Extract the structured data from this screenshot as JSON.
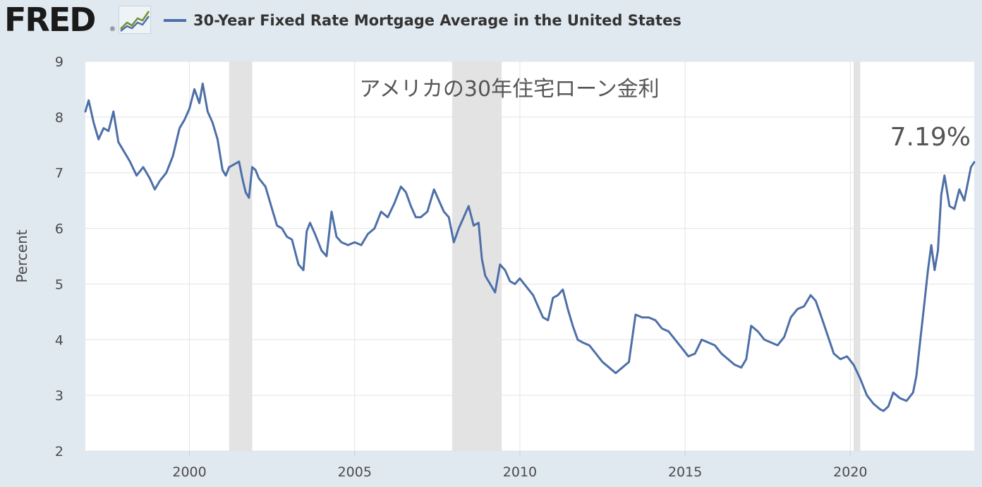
{
  "header": {
    "logo": "FRED",
    "logo_mark": "®",
    "logo_icon": "line-chart-icon",
    "legend_label": "30-Year Fixed Rate Mortgage Average in the United States"
  },
  "colors": {
    "background": "#e1e9f0",
    "plot": "#ffffff",
    "series": "#4d6fa8",
    "recession": "#e3e3e3",
    "grid": "#e3e3e3"
  },
  "chart_data": {
    "type": "line",
    "title": "",
    "annotation": "アメリカの30年住宅ローン金利",
    "callout": "7.19%",
    "xlabel": "",
    "ylabel": "Percent",
    "xlim": [
      1996.85,
      2023.75
    ],
    "ylim": [
      2,
      9
    ],
    "yticks": [
      2,
      3,
      4,
      5,
      6,
      7,
      8,
      9
    ],
    "xticks": [
      2000,
      2005,
      2010,
      2015,
      2020
    ],
    "grid": true,
    "recessions": [
      [
        2001.2,
        2001.9
      ],
      [
        2007.95,
        2009.45
      ],
      [
        2020.1,
        2020.3
      ]
    ],
    "series": [
      {
        "name": "30-Year Fixed Rate Mortgage Average in the United States",
        "x": [
          1996.85,
          1996.95,
          1997.1,
          1997.25,
          1997.4,
          1997.55,
          1997.7,
          1997.85,
          1998.0,
          1998.2,
          1998.4,
          1998.6,
          1998.8,
          1998.95,
          1999.1,
          1999.3,
          1999.5,
          1999.7,
          1999.85,
          2000.0,
          2000.15,
          2000.3,
          2000.4,
          2000.55,
          2000.7,
          2000.85,
          2001.0,
          2001.1,
          2001.2,
          2001.35,
          2001.5,
          2001.6,
          2001.7,
          2001.8,
          2001.9,
          2002.0,
          2002.1,
          2002.3,
          2002.5,
          2002.65,
          2002.8,
          2002.95,
          2003.1,
          2003.3,
          2003.45,
          2003.55,
          2003.65,
          2003.8,
          2004.0,
          2004.15,
          2004.3,
          2004.45,
          2004.6,
          2004.8,
          2005.0,
          2005.2,
          2005.4,
          2005.6,
          2005.8,
          2006.0,
          2006.2,
          2006.4,
          2006.55,
          2006.7,
          2006.85,
          2007.0,
          2007.2,
          2007.4,
          2007.55,
          2007.7,
          2007.85,
          2008.0,
          2008.15,
          2008.3,
          2008.45,
          2008.6,
          2008.75,
          2008.85,
          2008.95,
          2009.1,
          2009.25,
          2009.4,
          2009.55,
          2009.7,
          2009.85,
          2010.0,
          2010.2,
          2010.4,
          2010.55,
          2010.7,
          2010.85,
          2011.0,
          2011.15,
          2011.3,
          2011.45,
          2011.6,
          2011.75,
          2011.9,
          2012.1,
          2012.3,
          2012.5,
          2012.7,
          2012.9,
          2013.1,
          2013.3,
          2013.5,
          2013.7,
          2013.9,
          2014.1,
          2014.3,
          2014.5,
          2014.7,
          2014.9,
          2015.1,
          2015.3,
          2015.5,
          2015.7,
          2015.9,
          2016.1,
          2016.3,
          2016.5,
          2016.7,
          2016.85,
          2017.0,
          2017.2,
          2017.4,
          2017.6,
          2017.8,
          2018.0,
          2018.2,
          2018.4,
          2018.6,
          2018.8,
          2018.95,
          2019.1,
          2019.3,
          2019.5,
          2019.7,
          2019.9,
          2020.1,
          2020.3,
          2020.5,
          2020.7,
          2020.9,
          2021.0,
          2021.15,
          2021.3,
          2021.5,
          2021.7,
          2021.9,
          2022.0,
          2022.1,
          2022.25,
          2022.35,
          2022.45,
          2022.55,
          2022.65,
          2022.75,
          2022.85,
          2023.0,
          2023.15,
          2023.3,
          2023.45,
          2023.55,
          2023.65,
          2023.75
        ],
        "values": [
          8.1,
          8.3,
          7.9,
          7.6,
          7.8,
          7.75,
          8.1,
          7.55,
          7.4,
          7.2,
          6.95,
          7.1,
          6.9,
          6.7,
          6.85,
          7.0,
          7.3,
          7.8,
          7.95,
          8.15,
          8.5,
          8.25,
          8.6,
          8.1,
          7.9,
          7.6,
          7.05,
          6.95,
          7.1,
          7.15,
          7.2,
          6.9,
          6.65,
          6.55,
          7.1,
          7.05,
          6.9,
          6.75,
          6.35,
          6.05,
          6.0,
          5.85,
          5.8,
          5.35,
          5.25,
          5.95,
          6.1,
          5.9,
          5.6,
          5.5,
          6.3,
          5.85,
          5.75,
          5.7,
          5.75,
          5.7,
          5.9,
          6.0,
          6.3,
          6.2,
          6.45,
          6.75,
          6.65,
          6.4,
          6.2,
          6.2,
          6.3,
          6.7,
          6.5,
          6.3,
          6.2,
          5.75,
          6.0,
          6.2,
          6.4,
          6.05,
          6.1,
          5.45,
          5.15,
          5.0,
          4.85,
          5.35,
          5.25,
          5.05,
          5.0,
          5.1,
          4.95,
          4.8,
          4.6,
          4.4,
          4.35,
          4.75,
          4.8,
          4.9,
          4.55,
          4.25,
          4.0,
          3.95,
          3.9,
          3.75,
          3.6,
          3.5,
          3.4,
          3.5,
          3.6,
          4.45,
          4.4,
          4.4,
          4.35,
          4.2,
          4.15,
          4.0,
          3.85,
          3.7,
          3.75,
          4.0,
          3.95,
          3.9,
          3.75,
          3.65,
          3.55,
          3.5,
          3.65,
          4.25,
          4.15,
          4.0,
          3.95,
          3.9,
          4.05,
          4.4,
          4.55,
          4.6,
          4.8,
          4.7,
          4.45,
          4.1,
          3.75,
          3.65,
          3.7,
          3.55,
          3.3,
          3.0,
          2.85,
          2.75,
          2.72,
          2.8,
          3.05,
          2.95,
          2.9,
          3.05,
          3.35,
          3.9,
          4.7,
          5.25,
          5.7,
          5.25,
          5.6,
          6.6,
          6.95,
          6.4,
          6.35,
          6.7,
          6.5,
          6.8,
          7.1,
          7.19
        ]
      }
    ]
  }
}
